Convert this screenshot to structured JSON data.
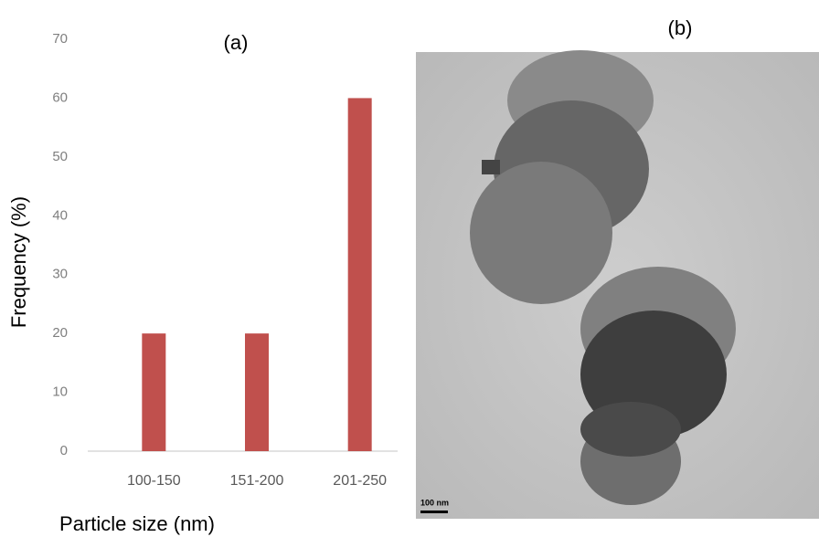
{
  "chart_data": {
    "type": "bar",
    "title": "(a)",
    "y_label": "Frequency (%)",
    "x_label": "Particle size (nm)",
    "categories": [
      "100-150",
      "151-200",
      "201-250"
    ],
    "values": [
      20,
      20,
      60
    ],
    "color": "#c0504d",
    "ylim": [
      0,
      70
    ],
    "yticks": [
      0,
      10,
      20,
      30,
      40,
      50,
      60,
      70
    ],
    "grid": false
  },
  "micrograph": {
    "title": "(b)",
    "scale_label": "100 nm"
  }
}
